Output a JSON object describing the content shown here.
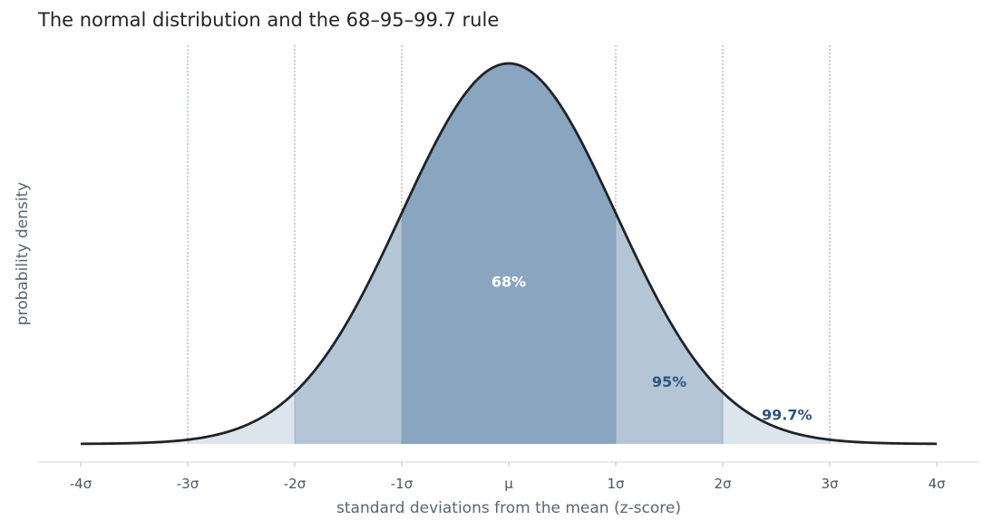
{
  "chart_data": {
    "type": "area",
    "title": "The normal distribution and the 68–95–99.7 rule",
    "xlabel": "standard deviations from the mean (z-score)",
    "ylabel": "probability density",
    "xlim": [
      -4,
      4
    ],
    "ylim": [
      0,
      0.4
    ],
    "x_ticks": [
      {
        "value": -4,
        "label": "-4σ"
      },
      {
        "value": -3,
        "label": "-3σ"
      },
      {
        "value": -2,
        "label": "-2σ"
      },
      {
        "value": -1,
        "label": "-1σ"
      },
      {
        "value": 0,
        "label": "μ"
      },
      {
        "value": 1,
        "label": "1σ"
      },
      {
        "value": 2,
        "label": "2σ"
      },
      {
        "value": 3,
        "label": "3σ"
      },
      {
        "value": 4,
        "label": "4σ"
      }
    ],
    "grid": {
      "x": true,
      "y": false,
      "style": "dotted"
    },
    "curve": {
      "distribution": "standard normal",
      "mean": 0,
      "sd": 1,
      "color": "#1f2328"
    },
    "bands": [
      {
        "range": [
          -3,
          3
        ],
        "label": "99.7%",
        "color": "#dde5ec",
        "label_color": "#2a5580",
        "label_x": 2.6,
        "label_y": 0.025
      },
      {
        "range": [
          -2,
          2
        ],
        "label": "95%",
        "color": "#b4c5d5",
        "label_color": "#2a5580",
        "label_x": 1.5,
        "label_y": 0.06
      },
      {
        "range": [
          -1,
          1
        ],
        "label": "68%",
        "color": "#8aa5bf",
        "label_color": "#ffffff",
        "label_x": 0,
        "label_y": 0.165
      }
    ]
  }
}
